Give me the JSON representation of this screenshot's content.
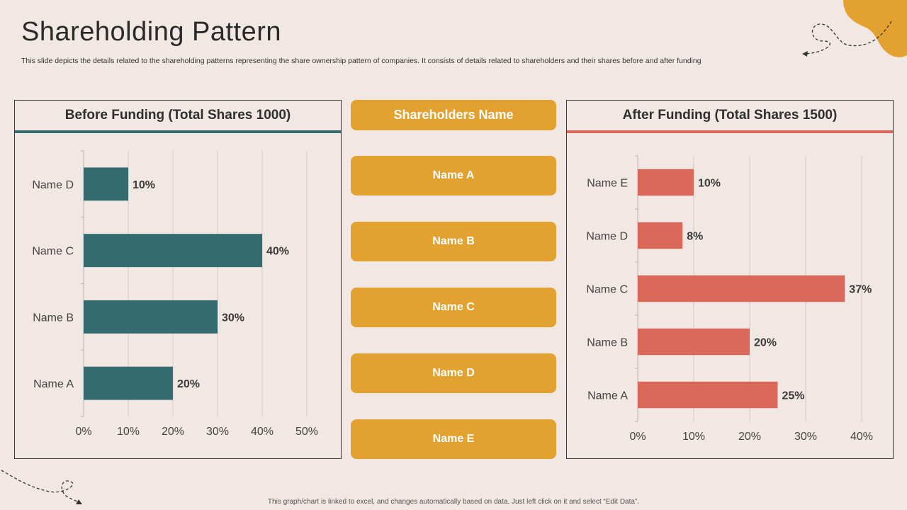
{
  "slide": {
    "title": "Shareholding Pattern",
    "subtitle": "This slide depicts the details related to the shareholding patterns representing the share ownership pattern of companies. It consists of details related to shareholders and their shares before and after funding",
    "footer": "This graph/chart is linked to excel, and changes automatically based on data. Just left click on it and select “Edit Data”."
  },
  "colors": {
    "background": "#f1e7e3",
    "teal": "#336b70",
    "coral": "#d9675a",
    "gold": "#e3a130"
  },
  "middle": {
    "header": "Shareholders Name",
    "names": [
      "Name A",
      "Name B",
      "Name C",
      "Name D",
      "Name E"
    ]
  },
  "chart_data": [
    {
      "type": "bar",
      "orientation": "horizontal",
      "title": "Before Funding (Total Shares 1000)",
      "categories": [
        "Name D",
        "Name C",
        "Name B",
        "Name A"
      ],
      "values": [
        10,
        40,
        30,
        20
      ],
      "value_labels": [
        "10%",
        "40%",
        "30%",
        "20%"
      ],
      "xlim": [
        0,
        50
      ],
      "xticks": [
        "0%",
        "10%",
        "20%",
        "30%",
        "40%",
        "50%"
      ],
      "color": "#336b70",
      "grid": true
    },
    {
      "type": "bar",
      "orientation": "horizontal",
      "title": "After Funding (Total Shares 1500)",
      "categories": [
        "Name E",
        "Name D",
        "Name C",
        "Name B",
        "Name A"
      ],
      "values": [
        10,
        8,
        37,
        20,
        25
      ],
      "value_labels": [
        "10%",
        "8%",
        "37%",
        "20%",
        "25%"
      ],
      "xlim": [
        0,
        40
      ],
      "xticks": [
        "0%",
        "10%",
        "20%",
        "30%",
        "40%"
      ],
      "color": "#d9675a",
      "grid": true
    }
  ]
}
